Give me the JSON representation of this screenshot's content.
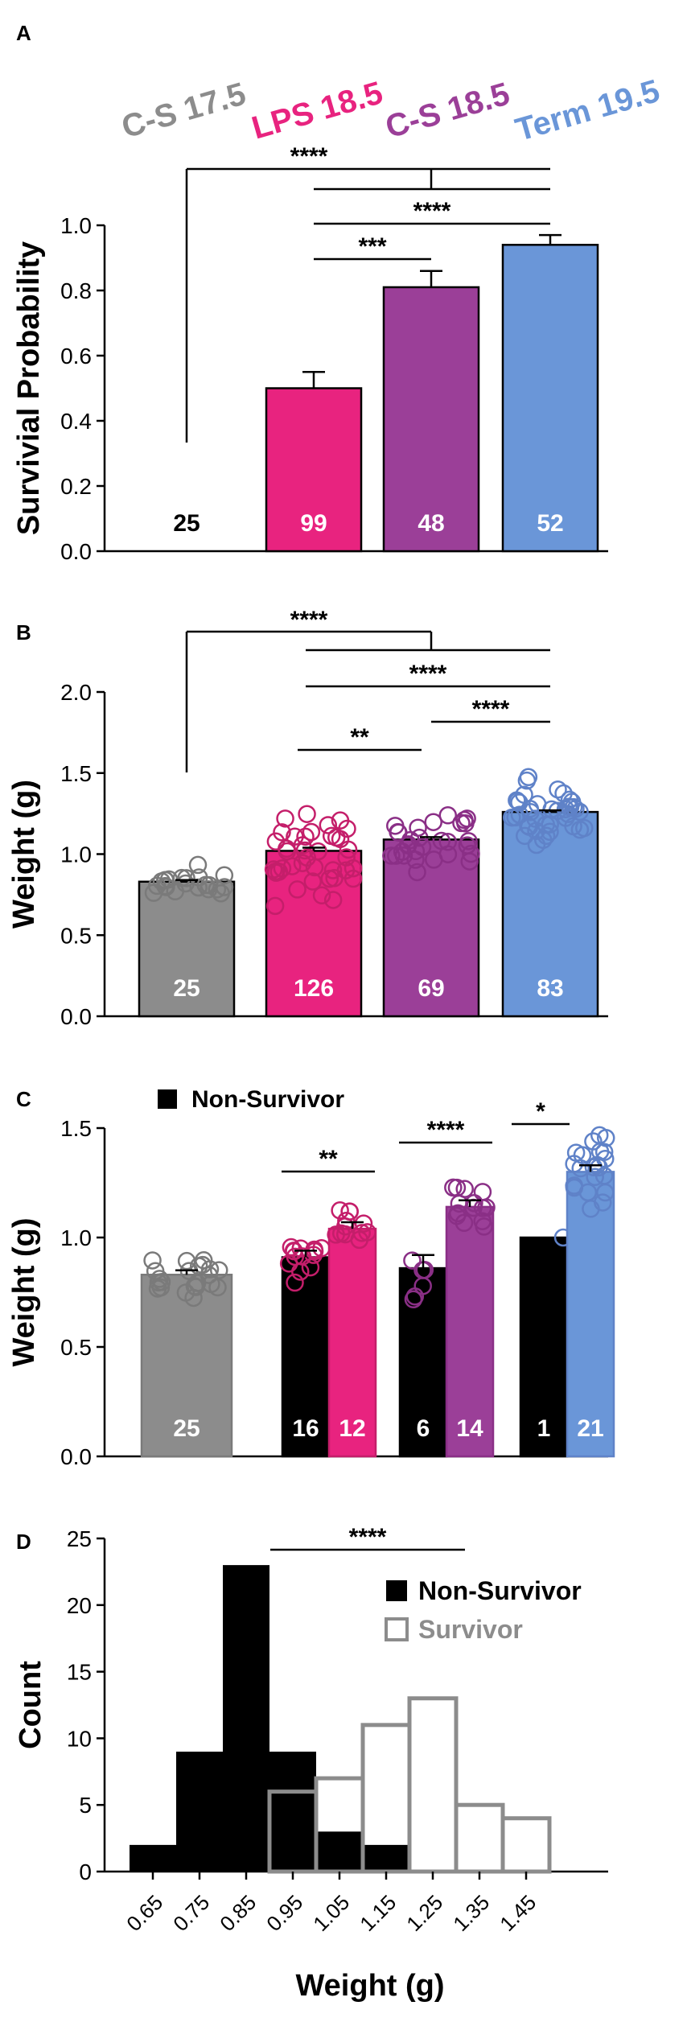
{
  "colors": {
    "cs175": "#8C8C8C",
    "lps185": "#E8237F",
    "cs185": "#9B3F98",
    "term195": "#6A96D8",
    "black": "#000000",
    "survivor_outline": "#8C8C8C"
  },
  "chart_data": [
    {
      "panel": "A",
      "type": "bar",
      "group_labels": [
        "C-S 17.5",
        "LPS 18.5",
        "C-S 18.5",
        "Term 19.5"
      ],
      "ylabel": "Survivial Probability",
      "ylim": [
        0,
        1.0
      ],
      "yticks": [
        "0.0",
        "0.2",
        "0.4",
        "0.6",
        "0.8",
        "1.0"
      ],
      "values": [
        0.0,
        0.5,
        0.81,
        0.94
      ],
      "errors": [
        0,
        0.05,
        0.05,
        0.03
      ],
      "counts": [
        "25",
        "99",
        "48",
        "52"
      ],
      "significance": [
        {
          "label": "****",
          "from": 0,
          "to": "1-3"
        },
        {
          "label": "****",
          "from": 1,
          "to": 3
        },
        {
          "label": "***",
          "from": 1,
          "to": 2
        }
      ]
    },
    {
      "panel": "B",
      "type": "bar",
      "ylabel": "Weight (g)",
      "ylim": [
        0,
        2.0
      ],
      "yticks": [
        "0.0",
        "0.5",
        "1.0",
        "1.5",
        "2.0"
      ],
      "values": [
        0.83,
        1.02,
        1.09,
        1.26
      ],
      "errors": [
        0.01,
        0.02,
        0.015,
        0.01
      ],
      "counts": [
        "25",
        "126",
        "69",
        "83"
      ],
      "significance": [
        {
          "label": "****",
          "from": 0,
          "to": "1-3"
        },
        {
          "label": "****",
          "from": 1,
          "to": 3
        },
        {
          "label": "****",
          "from": 2,
          "to": 3
        },
        {
          "label": "**",
          "from": 1,
          "to": 2
        }
      ]
    },
    {
      "panel": "C",
      "type": "bar",
      "ylabel": "Weight (g)",
      "legend": "Non-Survivor",
      "ylim": [
        0,
        1.5
      ],
      "yticks": [
        "0.0",
        "0.5",
        "1.0",
        "1.5"
      ],
      "bars": [
        {
          "group": "C-S 17.5",
          "kind": "survivor",
          "value": 0.83,
          "error": 0.02,
          "count": "25"
        },
        {
          "group": "LPS 18.5",
          "kind": "non-survivor",
          "value": 0.91,
          "error": 0.03,
          "count": "16"
        },
        {
          "group": "LPS 18.5",
          "kind": "survivor",
          "value": 1.04,
          "error": 0.03,
          "count": "12"
        },
        {
          "group": "C-S 18.5",
          "kind": "non-survivor",
          "value": 0.86,
          "error": 0.06,
          "count": "6"
        },
        {
          "group": "C-S 18.5",
          "kind": "survivor",
          "value": 1.14,
          "error": 0.03,
          "count": "14"
        },
        {
          "group": "Term 19.5",
          "kind": "non-survivor",
          "value": 1.0,
          "error": 0,
          "count": "1"
        },
        {
          "group": "Term 19.5",
          "kind": "survivor",
          "value": 1.3,
          "error": 0.03,
          "count": "21"
        }
      ],
      "significance": [
        {
          "label": "**",
          "group": "LPS 18.5"
        },
        {
          "label": "****",
          "group": "C-S 18.5"
        },
        {
          "label": "*",
          "group": "Term 19.5"
        }
      ]
    },
    {
      "panel": "D",
      "type": "histogram",
      "xlabel": "Weight (g)",
      "ylabel": "Count",
      "ylim": [
        0,
        25
      ],
      "yticks": [
        "0",
        "5",
        "10",
        "15",
        "20",
        "25"
      ],
      "bins": [
        "0.65",
        "0.75",
        "0.85",
        "0.95",
        "1.05",
        "1.15",
        "1.25",
        "1.35",
        "1.45"
      ],
      "series": [
        {
          "name": "Non-Survivor",
          "values": [
            2,
            9,
            23,
            9,
            3,
            2,
            0,
            0,
            0
          ]
        },
        {
          "name": "Survivor",
          "values": [
            0,
            0,
            0,
            6,
            7,
            11,
            13,
            5,
            4
          ]
        }
      ],
      "significance": "****"
    }
  ]
}
